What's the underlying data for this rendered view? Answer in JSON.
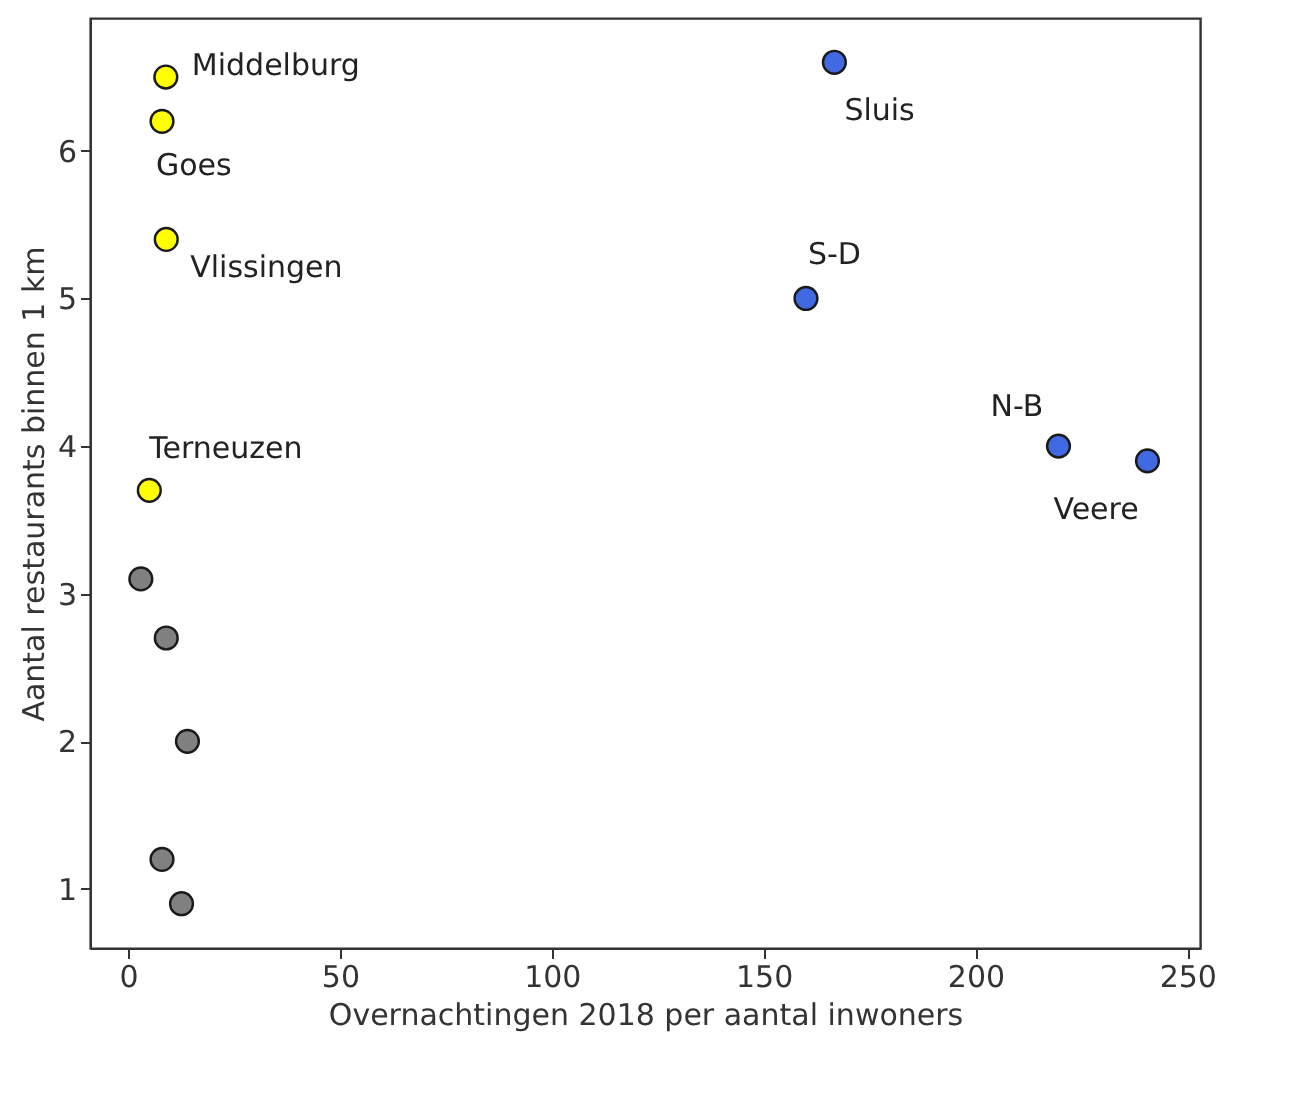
{
  "chart_data": {
    "type": "scatter",
    "xlabel": "Overnachtingen 2018 per aantal inwoners",
    "ylabel": "Aantal restaurants binnen 1 km",
    "series": [
      {
        "color": "#ffff00",
        "x": [
          8.9,
          8,
          9,
          5
        ],
        "values": [
          6.5,
          6.2,
          5.4,
          3.7
        ]
      },
      {
        "color": "#808080",
        "x": [
          3,
          9,
          14,
          8,
          12.6
        ],
        "values": [
          3.1,
          2.7,
          2.0,
          1.2,
          0.9
        ]
      },
      {
        "color": "#4169e1",
        "x": [
          166.7,
          160,
          219.6,
          240.6
        ],
        "values": [
          6.6,
          5.0,
          4.0,
          3.9
        ]
      }
    ],
    "annotations": [
      {
        "text": "Middelburg",
        "x": 8.9,
        "y": 6.5
      },
      {
        "text": "Goes",
        "x": 8,
        "y": 6.2
      },
      {
        "text": "Vlissingen",
        "x": 9,
        "y": 5.4
      },
      {
        "text": "Terneuzen",
        "x": 5,
        "y": 3.7
      },
      {
        "text": "Sluis",
        "x": 166.7,
        "y": 6.6
      },
      {
        "text": "S-D",
        "x": 160,
        "y": 5.0
      },
      {
        "text": "N-B",
        "x": 219.6,
        "y": 4.0
      },
      {
        "text": "Veere",
        "x": 240.6,
        "y": 3.9
      }
    ],
    "xlim": [
      -9,
      253
    ],
    "ylim": [
      0.6,
      6.9
    ],
    "xticks": [
      0,
      50,
      100,
      150,
      200,
      250
    ],
    "yticks": [
      1,
      2,
      3,
      4,
      5,
      6
    ],
    "grid": false,
    "marker": "circle"
  }
}
